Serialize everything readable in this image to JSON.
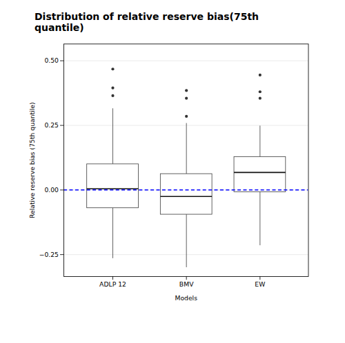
{
  "chart_data": {
    "type": "box",
    "title": "Distribution of relative reserve bias(75th quantile)",
    "xlabel": "Models",
    "ylabel": "Relative reserve bias (75th quantile)",
    "categories": [
      "ADLP 12",
      "BMV",
      "EW"
    ],
    "boxes": [
      {
        "q1": -0.07,
        "median": 0.005,
        "q3": 0.1,
        "whisker_low": -0.265,
        "whisker_high": 0.315,
        "outliers": [
          0.365,
          0.395,
          0.468
        ]
      },
      {
        "q1": -0.095,
        "median": -0.025,
        "q3": 0.062,
        "whisker_low": -0.3,
        "whisker_high": 0.258,
        "outliers": [
          0.285,
          0.355,
          0.385
        ]
      },
      {
        "q1": -0.008,
        "median": 0.068,
        "q3": 0.128,
        "whisker_low": -0.215,
        "whisker_high": 0.248,
        "outliers": [
          0.355,
          0.38,
          0.445
        ]
      }
    ],
    "hline": {
      "value": 0.0,
      "color": "blue",
      "line_style": "dashed"
    },
    "ylim": [
      -0.335,
      0.565
    ],
    "yticks": [
      {
        "value": -0.25,
        "label": "−0.25"
      },
      {
        "value": 0.0,
        "label": "0.00"
      },
      0.25,
      {
        "value": 0.5,
        "label": "0.50"
      }
    ],
    "grid": true
  }
}
